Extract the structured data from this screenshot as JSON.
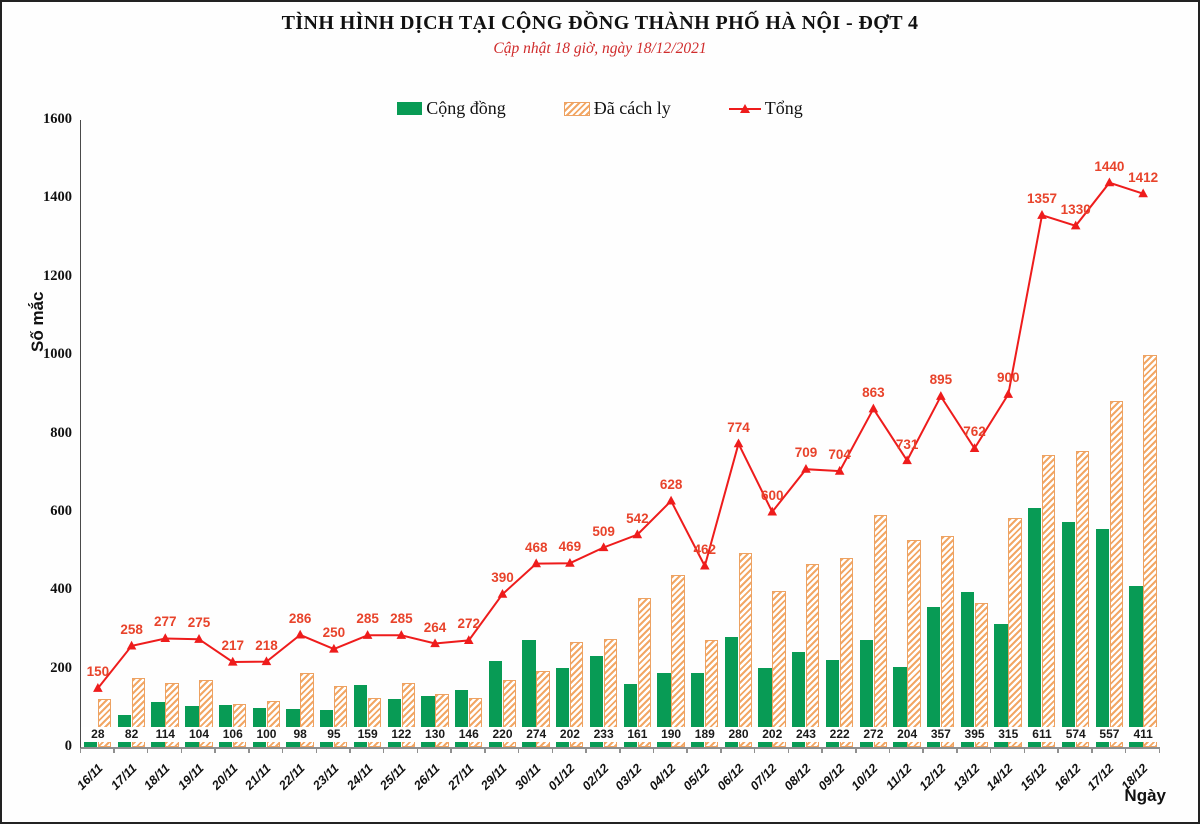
{
  "page": {
    "title": "TÌNH HÌNH DỊCH TẠI CỘNG ĐỒNG THÀNH PHỐ HÀ NỘI - ĐỢT 4",
    "subtitle": "Cập nhật 18 giờ, ngày 18/12/2021"
  },
  "legend": {
    "items": [
      {
        "label": "Cộng đồng",
        "swatch": "solid-green-square"
      },
      {
        "label": "Đã cách ly",
        "swatch": "orange-hatched-square"
      },
      {
        "label": "Tổng",
        "swatch": "red-line-triangle-marker"
      }
    ]
  },
  "axes": {
    "y_label": "Số mắc",
    "x_label": "Ngày",
    "y_ticks": [
      0,
      200,
      400,
      600,
      800,
      1000,
      1200,
      1400,
      1600
    ],
    "y_max": 1600
  },
  "colors": {
    "green": "#089b55",
    "orange_hatch": "#f2a765",
    "orange_border": "#eda262",
    "red_line": "#ee1c1c",
    "red_label": "#e8432b",
    "subtitle_red": "#d02c2c"
  },
  "chart_data": {
    "type": "bar+line",
    "title": "TÌNH HÌNH DỊCH TẠI CỘNG ĐỒNG THÀNH PHỐ HÀ NỘI - ĐỢT 4",
    "subtitle": "Cập nhật 18 giờ, ngày 18/12/2021",
    "xlabel": "Ngày",
    "ylabel": "Số mắc",
    "ylim": [
      0,
      1600
    ],
    "grid": false,
    "legend_position": "top",
    "categories": [
      "16/11",
      "17/11",
      "18/11",
      "19/11",
      "20/11",
      "21/11",
      "22/11",
      "23/11",
      "24/11",
      "25/11",
      "26/11",
      "27/11",
      "29/11",
      "30/11",
      "01/12",
      "02/12",
      "03/12",
      "04/12",
      "05/12",
      "06/12",
      "07/12",
      "08/12",
      "09/12",
      "10/12",
      "11/12",
      "12/12",
      "13/12",
      "14/12",
      "15/12",
      "16/12",
      "17/12",
      "18/12"
    ],
    "series": [
      {
        "name": "Cộng đồng",
        "type": "bar",
        "style": "solid",
        "color": "#089b55",
        "labels_shown": true,
        "values": [
          28,
          82,
          114,
          104,
          106,
          100,
          98,
          95,
          159,
          122,
          130,
          146,
          220,
          274,
          202,
          233,
          161,
          190,
          189,
          280,
          202,
          243,
          222,
          272,
          204,
          357,
          395,
          315,
          611,
          574,
          557,
          411
        ]
      },
      {
        "name": "Đã cách ly",
        "type": "bar",
        "style": "hatched",
        "color": "#f2a765",
        "labels_shown": false,
        "values": [
          122,
          176,
          163,
          171,
          111,
          118,
          188,
          155,
          126,
          163,
          134,
          126,
          170,
          194,
          267,
          276,
          381,
          438,
          273,
          494,
          398,
          466,
          482,
          591,
          527,
          538,
          367,
          585,
          746,
          756,
          883,
          1001
        ]
      },
      {
        "name": "Tổng",
        "type": "line",
        "marker": "triangle-up",
        "color": "#ee1c1c",
        "label_color": "#e8432b",
        "labels_shown": true,
        "values": [
          150,
          258,
          277,
          275,
          217,
          218,
          286,
          250,
          285,
          285,
          264,
          272,
          390,
          468,
          469,
          509,
          542,
          628,
          462,
          774,
          600,
          709,
          704,
          863,
          731,
          895,
          762,
          900,
          1357,
          1330,
          1440,
          1412
        ]
      }
    ]
  }
}
